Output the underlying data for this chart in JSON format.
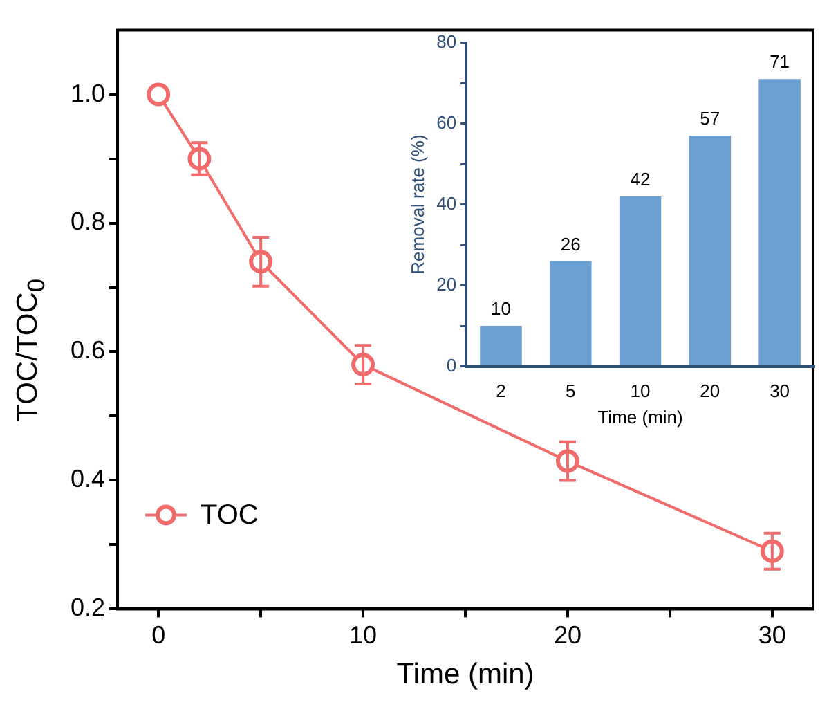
{
  "chart_data": [
    {
      "type": "line",
      "xlabel": "Time (min)",
      "ylabel": "TOC/TOC$_{0}$",
      "x": [
        0,
        2,
        5,
        10,
        20,
        30
      ],
      "series": [
        {
          "name": "TOC",
          "color": "#f26b6b",
          "values": [
            1.0,
            0.9,
            0.74,
            0.58,
            0.43,
            0.29
          ],
          "errors": [
            null,
            0.025,
            0.038,
            0.03,
            0.03,
            0.028
          ]
        }
      ],
      "xlim": [
        -2,
        32
      ],
      "xticks": [
        0,
        {
          "value": 5,
          "label": null
        },
        10,
        {
          "value": 15,
          "label": null
        },
        20,
        {
          "value": 25,
          "label": null
        },
        30
      ],
      "ylim": [
        0.2,
        1.1
      ],
      "yticks": [
        {
          "value": 0.2,
          "label": "0.2"
        },
        {
          "value": 0.3,
          "label": null
        },
        {
          "value": 0.4,
          "label": "0.4"
        },
        {
          "value": 0.5,
          "label": null
        },
        {
          "value": 0.6,
          "label": "0.6"
        },
        {
          "value": 0.7,
          "label": null
        },
        {
          "value": 0.8,
          "label": "0.8"
        },
        {
          "value": 0.9,
          "label": null
        },
        {
          "value": 1.0,
          "label": "1.0"
        }
      ],
      "legend": "bottom left",
      "marker": "circle",
      "line_style": "solid"
    },
    {
      "type": "bar",
      "xlabel": "Time (min)",
      "ylabel": "Removal rate (%)",
      "categories": [
        "2",
        "5",
        "10",
        "20",
        "30"
      ],
      "values": [
        10,
        26,
        42,
        57,
        71
      ],
      "color": "#6b9fd2",
      "ylim": [
        0,
        80
      ],
      "yticks": [
        0,
        {
          "value": 10,
          "label": null
        },
        20,
        {
          "value": 30,
          "label": null
        },
        40,
        {
          "value": 50,
          "label": null
        },
        60,
        {
          "value": 70,
          "label": null
        },
        80
      ],
      "data_labels": true
    }
  ]
}
